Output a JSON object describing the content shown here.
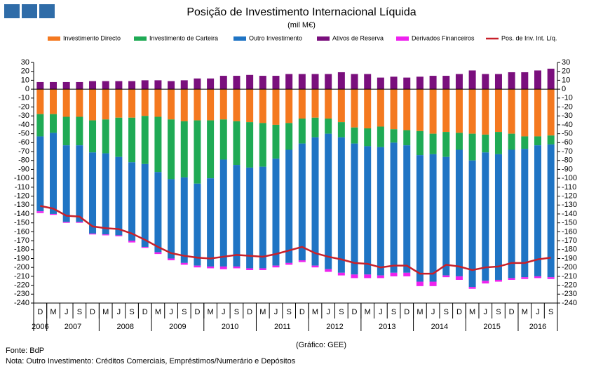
{
  "chart_data": {
    "type": "bar",
    "stacked": true,
    "title": "Posição de Investimento Internacional Líquida",
    "subtitle": "(mil M€)",
    "categories": [
      "D",
      "M",
      "J",
      "S",
      "D",
      "M",
      "J",
      "S",
      "D",
      "M",
      "J",
      "S",
      "D",
      "M",
      "J",
      "S",
      "D",
      "M",
      "J",
      "S",
      "D",
      "M",
      "J",
      "S",
      "D",
      "M",
      "J",
      "S",
      "D",
      "M",
      "J",
      "S",
      "D",
      "M",
      "J",
      "S",
      "D",
      "M",
      "J",
      "S"
    ],
    "years": [
      "2006",
      "2007",
      "2008",
      "2009",
      "2010",
      "2011",
      "2012",
      "2013",
      "2014",
      "2015",
      "2016"
    ],
    "series": [
      {
        "name": "Investimento Directo",
        "color": "#f47920",
        "values": [
          -28,
          -28,
          -31,
          -31,
          -35,
          -34,
          -32,
          -32,
          -30,
          -31,
          -34,
          -36,
          -35,
          -35,
          -34,
          -36,
          -37,
          -38,
          -40,
          -38,
          -33,
          -32,
          -33,
          -37,
          -43,
          -44,
          -42,
          -45,
          -46,
          -47,
          -50,
          -48,
          -49,
          -50,
          -51,
          -48,
          -50,
          -53,
          -53,
          -52
        ]
      },
      {
        "name": "Investimento de Carteira",
        "color": "#1faa55",
        "values": [
          -25,
          -21,
          -32,
          -32,
          -36,
          -38,
          -44,
          -50,
          -54,
          -62,
          -67,
          -63,
          -71,
          -65,
          -45,
          -49,
          -51,
          -49,
          -38,
          -30,
          -28,
          -22,
          -17,
          -17,
          -18,
          -20,
          -23,
          -15,
          -17,
          -27,
          -23,
          -28,
          -19,
          -30,
          -20,
          -25,
          -18,
          -14,
          -10,
          -10
        ]
      },
      {
        "name": "Outro Investimento",
        "color": "#1f74c4",
        "values": [
          -84,
          -91,
          -86,
          -86,
          -91,
          -91,
          -88,
          -88,
          -93,
          -90,
          -89,
          -96,
          -92,
          -99,
          -120,
          -114,
          -113,
          -114,
          -120,
          -127,
          -131,
          -144,
          -152,
          -152,
          -147,
          -144,
          -144,
          -146,
          -143,
          -142,
          -143,
          -133,
          -142,
          -142,
          -144,
          -141,
          -144,
          -144,
          -147,
          -149
        ]
      },
      {
        "name": "Ativos de Reserva",
        "color": "#7a0f7d",
        "values": [
          8,
          8,
          8,
          8,
          9,
          9,
          9,
          9,
          10,
          10,
          9,
          10,
          12,
          12,
          15,
          15,
          16,
          15,
          15,
          17,
          17,
          17,
          17,
          19,
          17,
          17,
          13,
          14,
          13,
          14,
          15,
          15,
          17,
          21,
          17,
          17,
          19,
          19,
          21,
          23
        ]
      },
      {
        "name": "Derivados Financeiros",
        "color": "#ee22ee",
        "values": [
          -2,
          -1,
          -1,
          -1,
          -1,
          -1,
          -1,
          -2,
          -1,
          -2,
          -2,
          -2,
          -2,
          -2,
          -3,
          -2,
          -2,
          -2,
          -2,
          -2,
          -2,
          -2,
          -3,
          -3,
          -4,
          -4,
          -3,
          -4,
          -4,
          -5,
          -5,
          -2,
          -4,
          -2,
          -3,
          -2,
          -2,
          -2,
          -2,
          -2
        ]
      },
      {
        "name": "Pos. de Inv. Int. Líq.",
        "color": "#c8202a",
        "type": "line",
        "values": [
          -131,
          -134,
          -142,
          -143,
          -154,
          -156,
          -157,
          -162,
          -169,
          -177,
          -184,
          -187,
          -189,
          -190,
          -188,
          -186,
          -187,
          -188,
          -185,
          -181,
          -177,
          -184,
          -188,
          -191,
          -195,
          -196,
          -200,
          -198,
          -198,
          -207,
          -207,
          -197,
          -199,
          -203,
          -200,
          -199,
          -195,
          -195,
          -191,
          -189
        ]
      }
    ],
    "ylim": [
      -240,
      30
    ],
    "yticks": [
      30,
      20,
      10,
      0,
      -10,
      -20,
      -30,
      -40,
      -50,
      -60,
      -70,
      -80,
      -90,
      -100,
      -110,
      -120,
      -130,
      -140,
      -150,
      -160,
      -170,
      -180,
      -190,
      -200,
      -210,
      -220,
      -230,
      -240
    ],
    "y2lim": [
      -240,
      30
    ],
    "y2ticks": [
      30,
      20,
      10,
      0,
      -10,
      -20,
      -30,
      -40,
      -50,
      -60,
      -70,
      -80,
      -90,
      -100,
      -110,
      -120,
      -130,
      -140,
      -150,
      -160,
      -170,
      -180,
      -190,
      -200,
      -210,
      -220,
      -230,
      -240
    ],
    "grid": false,
    "credit": "(Gráfico: GEE)",
    "source": "Fonte: BdP",
    "note": "Nota: Outro Investimento:  Créditos Comerciais, Empréstimos/Numerário  e Depósitos"
  }
}
